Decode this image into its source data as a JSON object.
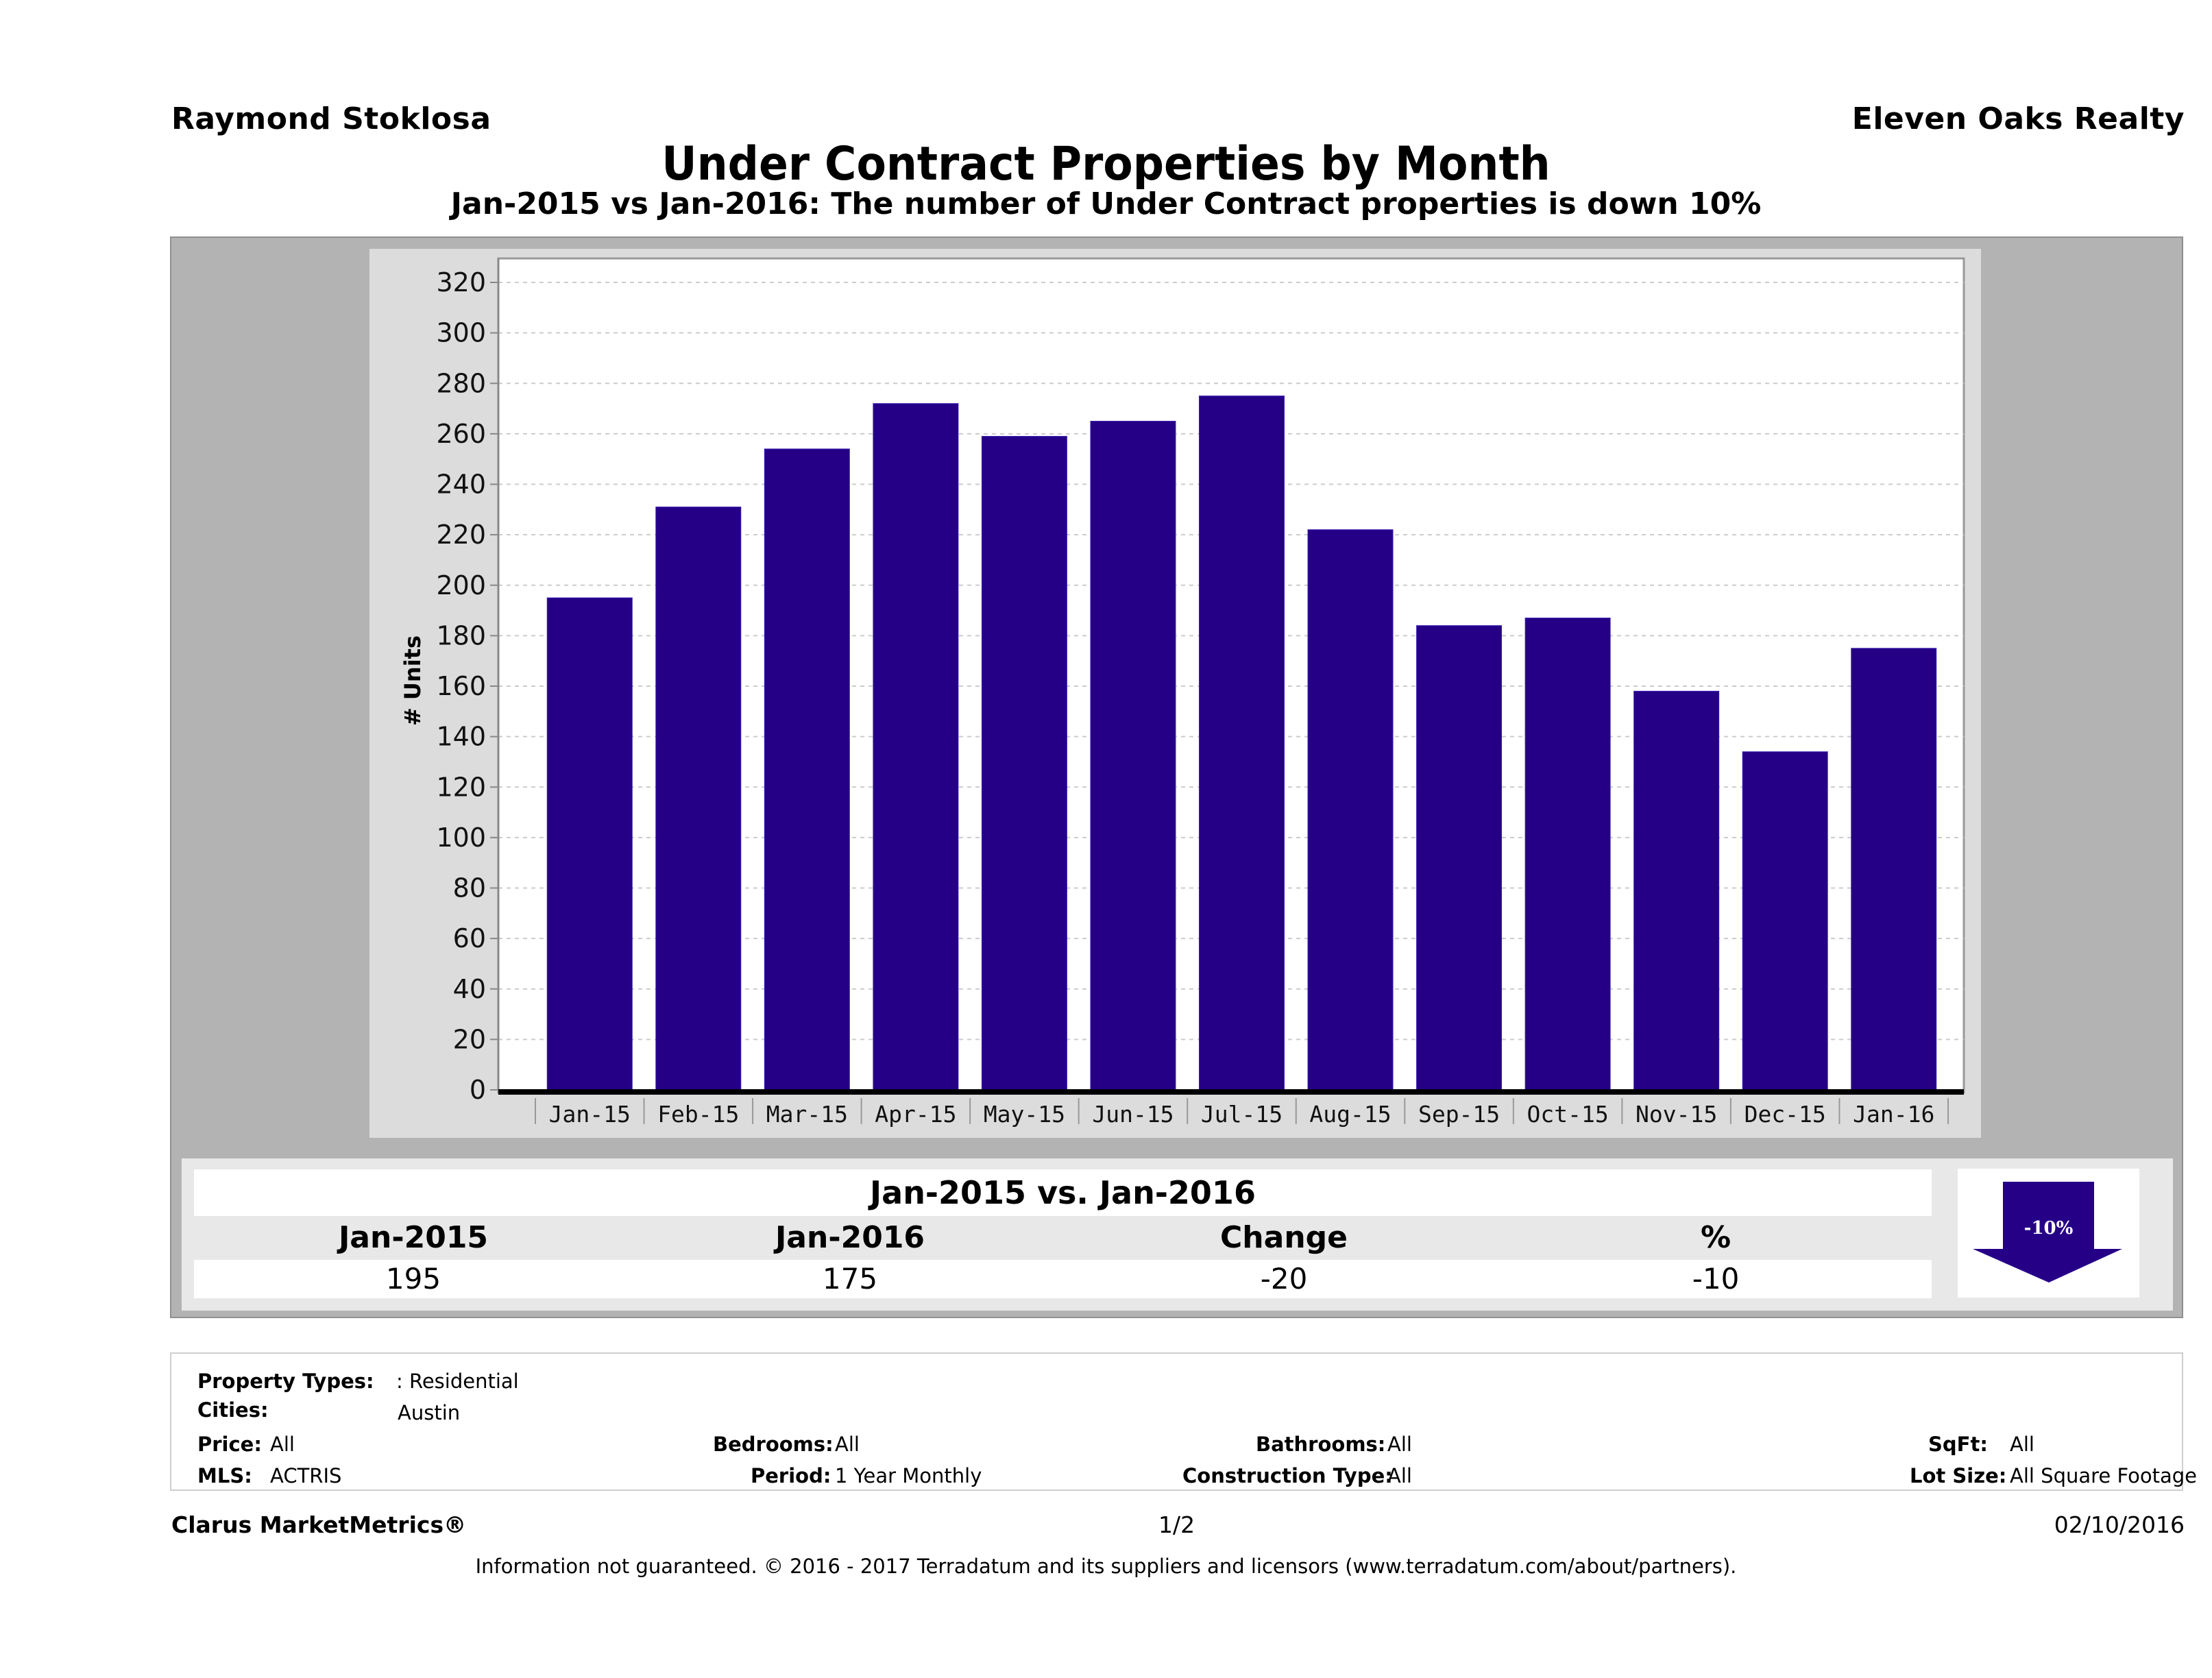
{
  "header": {
    "agent_name": "Raymond Stoklosa",
    "brokerage": "Eleven Oaks Realty",
    "title": "Under Contract Properties by Month",
    "subtitle": "Jan-2015 vs Jan-2016: The number of Under Contract  properties is down 10%"
  },
  "colors": {
    "bar": "#250087",
    "outer_panel": "#b3b3b3",
    "chart_panel": "#dcdcdc",
    "plot_bg": "#ffffff"
  },
  "chart_data": {
    "type": "bar",
    "title": "Under Contract Properties by Month",
    "subtitle": "Jan-2015 vs Jan-2016: The number of Under Contract  properties is down 10%",
    "xlabel": "",
    "ylabel": "# Units",
    "categories": [
      "Jan-15",
      "Feb-15",
      "Mar-15",
      "Apr-15",
      "May-15",
      "Jun-15",
      "Jul-15",
      "Aug-15",
      "Sep-15",
      "Oct-15",
      "Nov-15",
      "Dec-15",
      "Jan-16"
    ],
    "values": [
      195,
      231,
      254,
      272,
      259,
      265,
      275,
      222,
      184,
      187,
      158,
      134,
      175
    ],
    "ylim": [
      0,
      320
    ],
    "yticks": [
      0,
      20,
      40,
      60,
      80,
      100,
      120,
      140,
      160,
      180,
      200,
      220,
      240,
      260,
      280,
      300,
      320
    ],
    "grid": true,
    "legend": "none"
  },
  "summary": {
    "title": "Jan-2015 vs. Jan-2016",
    "headers": [
      "Jan-2015",
      "Jan-2016",
      "Change",
      "%"
    ],
    "values": [
      "195",
      "175",
      "-20",
      "-10"
    ],
    "badge": {
      "label": "-10%",
      "direction": "down",
      "icon": "down-arrow-icon"
    }
  },
  "filters": {
    "property_types": {
      "label": "Property Types:",
      "value": ": Residential"
    },
    "cities": {
      "label": "Cities:",
      "value": "Austin"
    },
    "price": {
      "label": "Price:",
      "value": "All"
    },
    "mls": {
      "label": "MLS:",
      "value": "ACTRIS"
    },
    "bedrooms": {
      "label": "Bedrooms:",
      "value": "All"
    },
    "period": {
      "label": "Period:",
      "value": "1 Year Monthly"
    },
    "bathrooms": {
      "label": "Bathrooms:",
      "value": "All"
    },
    "construction_type": {
      "label": "Construction Type:",
      "value": "All"
    },
    "sqft": {
      "label": "SqFt:",
      "value": "All"
    },
    "lot_size": {
      "label": "Lot Size:",
      "value": "All Square Footage"
    }
  },
  "footer": {
    "product": "Clarus MarketMetrics®",
    "page": "1/2",
    "date": "02/10/2016",
    "disclaimer": "Information not guaranteed. © 2016 - 2017 Terradatum and its suppliers and licensors (www.terradatum.com/about/partners)."
  }
}
